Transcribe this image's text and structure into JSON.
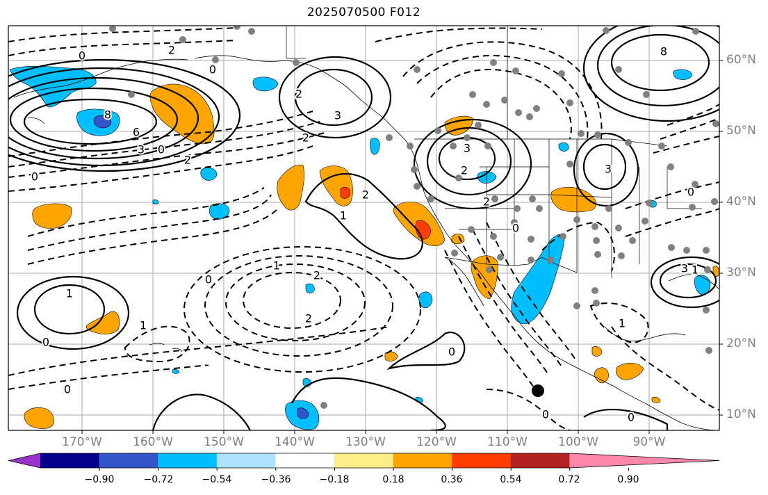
{
  "title": "2025070500 F012",
  "latitude_labels": [
    "60°N",
    "50°N",
    "40°N",
    "30°N",
    "20°N",
    "10°N"
  ],
  "longitude_labels": [
    "170°W",
    "160°W",
    "150°W",
    "140°W",
    "130°W",
    "120°W",
    "110°W",
    "100°W",
    "90°W"
  ],
  "contour_labels": [
    "0",
    "2",
    "0",
    "8",
    "6",
    "3",
    "2",
    "0",
    "0",
    "2",
    "3",
    "2",
    "1",
    "2",
    "1",
    "2",
    "3",
    "2",
    "0",
    "1",
    "2",
    "0",
    "1",
    "2",
    "0",
    "2",
    "0",
    "0",
    "3",
    "1",
    "0",
    "8",
    "1",
    "3",
    "0",
    "0"
  ],
  "colorbar": {
    "ticks": [
      "−0.90",
      "−0.72",
      "−0.54",
      "−0.36",
      "−0.18",
      "0.18",
      "0.36",
      "0.54",
      "0.72",
      "0.90"
    ],
    "colors": [
      "#9933cc",
      "#00008b",
      "#3355cc",
      "#00bfff",
      "#aee2ff",
      "#ffffff",
      "#ffee88",
      "#ffa500",
      "#ff3d00",
      "#b22222",
      "#ff88aa"
    ]
  },
  "colors": {
    "positive_anomaly": "#ffa500",
    "strong_positive": "#ff3d00",
    "negative_anomaly": "#00bfff",
    "strong_negative": "#3355cc",
    "contour": "#000000",
    "station": "#808080",
    "grid": "#aaaaaa"
  },
  "marker": "black-dot-marker"
}
